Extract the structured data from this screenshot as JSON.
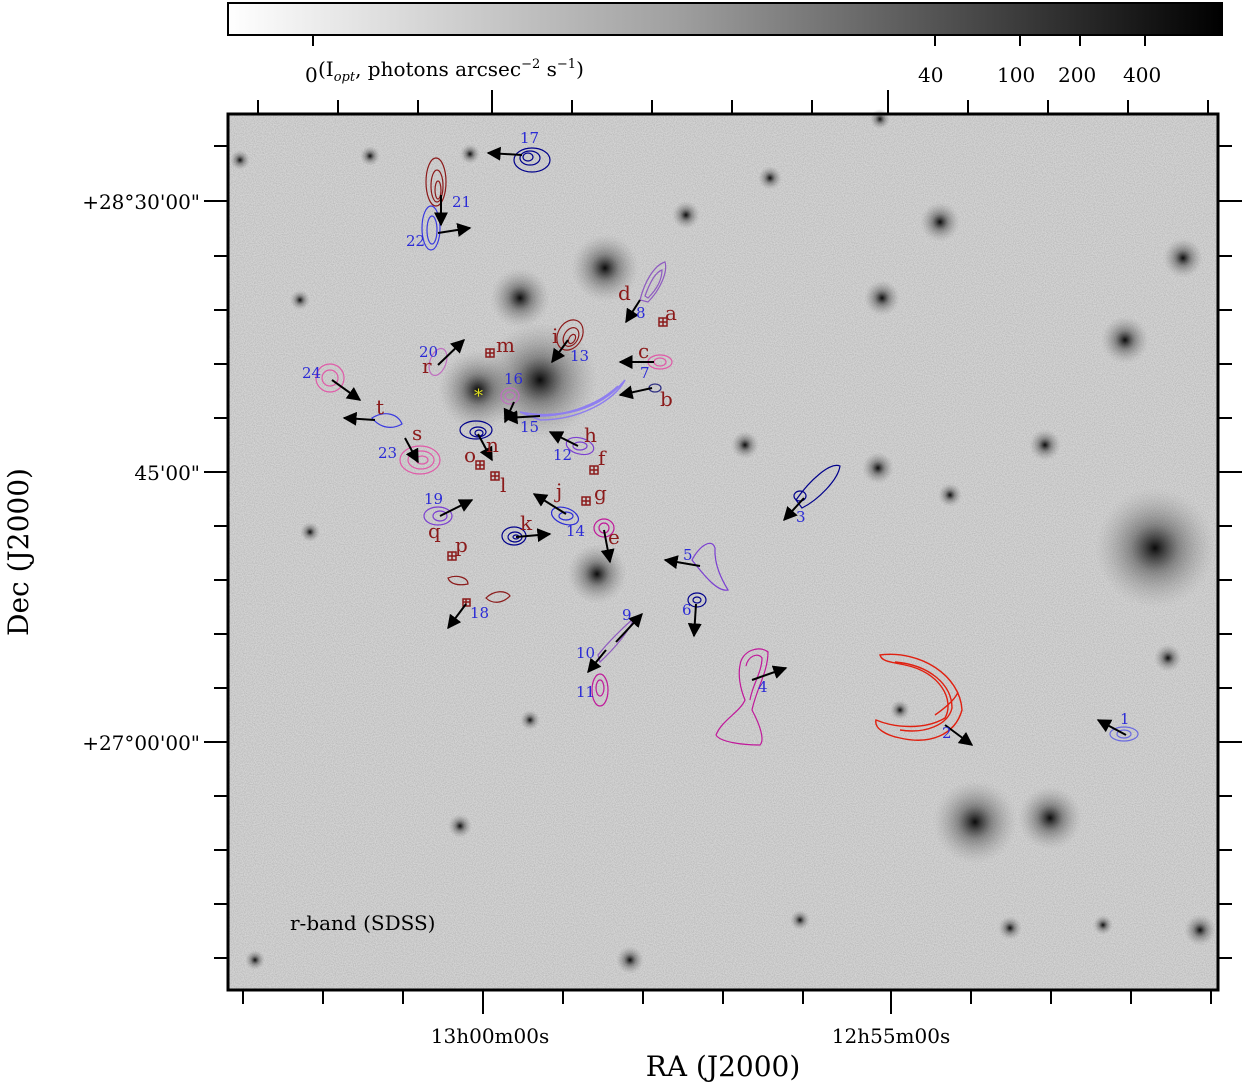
{
  "colorbar": {
    "label": "(I",
    "label_sub": "opt",
    "label_rest": ", photons arcsec",
    "label_sup": "−2",
    "label_end": " s",
    "label_sup2": "−1",
    "label_close": ")",
    "ticks": [
      "0",
      "40",
      "100",
      "200",
      "400"
    ]
  },
  "axes": {
    "xlabel": "RA (J2000)",
    "ylabel": "Dec (J2000)",
    "x_ticks": [
      "13h00m00s",
      "12h55m00s"
    ],
    "y_ticks": [
      "+28°30'00\"",
      "45'00\"",
      "+27°00'00\""
    ]
  },
  "band_label": "r-band (SDSS)",
  "blue_labels": [
    "17",
    "21",
    "22",
    "8",
    "13",
    "7",
    "20",
    "24",
    "16",
    "15",
    "12",
    "23",
    "19",
    "14",
    "5",
    "3",
    "6",
    "9",
    "10",
    "11",
    "4",
    "2",
    "1",
    "18"
  ],
  "red_labels": [
    "d",
    "a",
    "i",
    "c",
    "m",
    "r",
    "b",
    "t",
    "n",
    "h",
    "s",
    "o",
    "f",
    "l",
    "j",
    "g",
    "q",
    "k",
    "e",
    "p"
  ],
  "colors": {
    "blue": "#2b2bd6",
    "darkred": "#8b1a1a",
    "navy": "#00008b",
    "purple": "#7b3fd1",
    "magenta": "#c0189a",
    "pink": "#e05aa8",
    "red": "#e02010",
    "lavender": "#8e7ef0",
    "yellow": "#e0e020"
  }
}
